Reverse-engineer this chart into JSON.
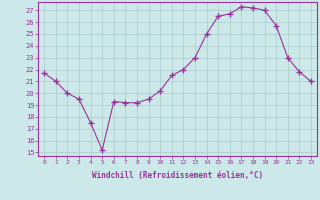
{
  "x": [
    0,
    1,
    2,
    3,
    4,
    5,
    6,
    7,
    8,
    9,
    10,
    11,
    12,
    13,
    14,
    15,
    16,
    17,
    18,
    19,
    20,
    21,
    22,
    23
  ],
  "y": [
    21.7,
    21.0,
    20.0,
    19.5,
    17.5,
    15.2,
    19.3,
    19.2,
    19.2,
    19.5,
    20.2,
    21.5,
    22.0,
    23.0,
    25.0,
    26.5,
    26.7,
    27.3,
    27.2,
    27.0,
    25.7,
    23.0,
    21.8,
    21.0
  ],
  "line_color": "#993399",
  "marker": "+",
  "marker_size": 4,
  "bg_color": "#cce8e8",
  "grid_color": "#aacccc",
  "tick_color": "#993399",
  "label_color": "#993399",
  "xlabel": "Windchill (Refroidissement éolien,°C)",
  "xlim": [
    -0.5,
    23.5
  ],
  "ylim": [
    14.7,
    27.7
  ],
  "yticks": [
    15,
    16,
    17,
    18,
    19,
    20,
    21,
    22,
    23,
    24,
    25,
    26,
    27
  ],
  "xticks": [
    0,
    1,
    2,
    3,
    4,
    5,
    6,
    7,
    8,
    9,
    10,
    11,
    12,
    13,
    14,
    15,
    16,
    17,
    18,
    19,
    20,
    21,
    22,
    23
  ]
}
